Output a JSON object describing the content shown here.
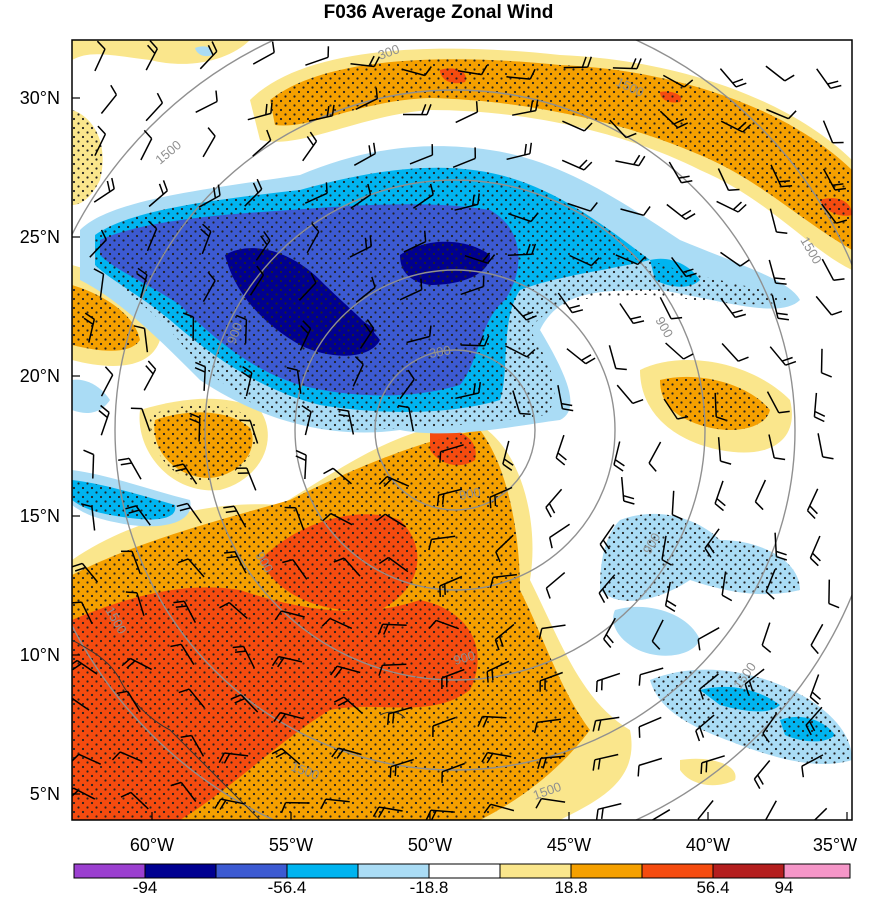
{
  "title": "F036 Average Zonal Wind",
  "map": {
    "lat_labels": [
      "30°N",
      "25°N",
      "20°N",
      "15°N",
      "10°N",
      "5°N"
    ],
    "lon_labels": [
      "60°W",
      "55°W",
      "50°W",
      "45°W",
      "40°W",
      "35°W"
    ],
    "range_ring_labels": [
      "300",
      "300",
      "900",
      "900",
      "900",
      "900",
      "1500",
      "1500",
      "1500",
      "1500",
      "1500",
      "1500",
      "1500"
    ],
    "stippling": "dotted",
    "wind_symbol": "barbs"
  },
  "colorbar": {
    "colors": [
      "#9b3fd0",
      "#000090",
      "#3c5ad2",
      "#00b4f0",
      "#aadcf5",
      "#ffffff",
      "#fae68c",
      "#f5a000",
      "#f54b0f",
      "#b41e1e",
      "#f596c8"
    ],
    "labels": [
      "-94",
      "-56.4",
      "-18.8",
      "18.8",
      "56.4",
      "94"
    ]
  }
}
